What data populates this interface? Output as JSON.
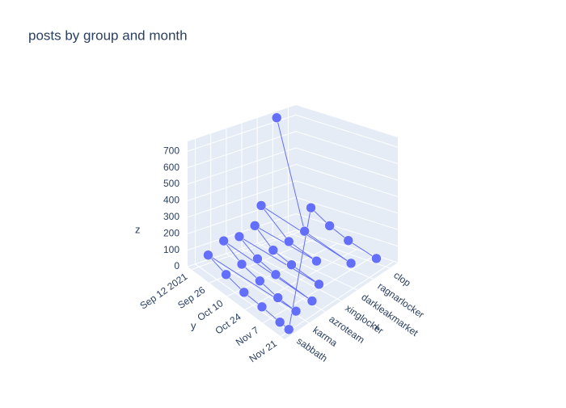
{
  "chart_data": {
    "type": "scatter3d",
    "title": "posts by group and month",
    "x_label": "x",
    "y_label": "y",
    "z_label": "z",
    "categories": [
      "sabbath",
      "karma",
      "azroteam",
      "xinglocker",
      "darkleakmarket",
      "ragnarlocker",
      "clop"
    ],
    "ylim": [
      "2021-09-09",
      "2021-11-24"
    ],
    "yticks": [
      {
        "value": "2021-09-12",
        "label": "Sep 12 2021"
      },
      {
        "value": "2021-09-26",
        "label": "Sep 26"
      },
      {
        "value": "2021-10-10",
        "label": "Oct 10"
      },
      {
        "value": "2021-10-24",
        "label": "Oct 24"
      },
      {
        "value": "2021-11-07",
        "label": "Nov 7"
      },
      {
        "value": "2021-11-21",
        "label": "Nov 21"
      }
    ],
    "zlim": [
      0,
      760
    ],
    "zticks": [
      0,
      100,
      200,
      300,
      400,
      500,
      600,
      700
    ],
    "color": "#636efa",
    "grid": true,
    "x": [
      "ragnarlocker",
      "ragnarlocker",
      "ragnarlocker",
      "darkleakmarket",
      "darkleakmarket",
      "darkleakmarket",
      "xinglocker",
      "xinglocker",
      "xinglocker",
      "xinglocker",
      "azroteam",
      "azroteam",
      "azroteam",
      "azroteam",
      "karma",
      "karma",
      "karma",
      "karma",
      "karma",
      "sabbath",
      "sabbath",
      "sabbath",
      "sabbath",
      "sabbath",
      "sabbath",
      "clop",
      "clop",
      "clop",
      "clop"
    ],
    "y": [
      "2021-09-12",
      "2021-10-03",
      "2021-11-07",
      "2021-09-12",
      "2021-10-03",
      "2021-10-24",
      "2021-09-19",
      "2021-10-03",
      "2021-10-17",
      "2021-11-07",
      "2021-09-19",
      "2021-10-03",
      "2021-10-17",
      "2021-11-14",
      "2021-09-19",
      "2021-10-03",
      "2021-10-17",
      "2021-10-31",
      "2021-11-14",
      "2021-09-19",
      "2021-10-03",
      "2021-10-17",
      "2021-10-31",
      "2021-11-14",
      "2021-11-21",
      "2021-09-26",
      "2021-10-10",
      "2021-10-24",
      "2021-11-14"
    ],
    "z": [
      740,
      120,
      40,
      240,
      100,
      60,
      180,
      90,
      60,
      30,
      150,
      80,
      50,
      20,
      160,
      90,
      60,
      30,
      20,
      110,
      70,
      40,
      30,
      15,
      10,
      200,
      130,
      80,
      30
    ]
  }
}
